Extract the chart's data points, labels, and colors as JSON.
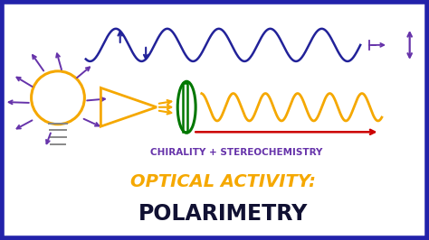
{
  "background_color": "#ffffff",
  "border_color": "#2222aa",
  "border_lw": 4,
  "title1": "CHIRALITY + STEREOCHEMISTRY",
  "title1_color": "#6633aa",
  "title1_fontsize": 7.5,
  "title2": "OPTICAL ACTIVITY:",
  "title2_color": "#f5a800",
  "title2_fontsize": 14,
  "title3": "POLARIMETRY",
  "title3_color": "#111133",
  "title3_fontsize": 17,
  "wave_color_top": "#222299",
  "wave_color_bottom": "#f5a800",
  "arrow_color": "#6633aa",
  "bulb_color": "#f5a800",
  "filter_color": "#007700",
  "red_line_color": "#cc0000",
  "figsize": [
    4.74,
    2.66
  ],
  "dpi": 100
}
